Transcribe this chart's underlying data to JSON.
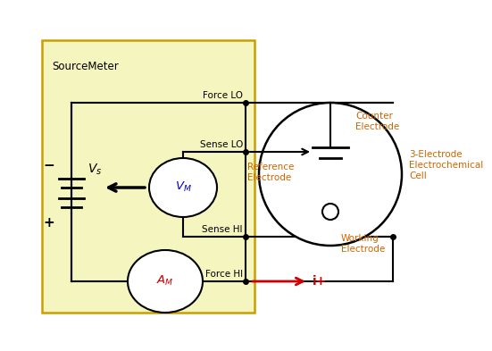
{
  "box_color": "#f5f5c0",
  "box_edge_color": "#c8a000",
  "line_color": "#000000",
  "blue_color": "#0000cc",
  "red_color": "#cc0000",
  "orange_color": "#cc6600",
  "label_force_lo": "Force LO",
  "label_sense_lo": "Sense LO",
  "label_sense_hi": "Sense HI",
  "label_force_hi": "Force HI",
  "label_ref_electrode": "Reference\nElectrode",
  "label_counter": "Counter\nElectrode",
  "label_working": "Working\nElectrode",
  "label_cell": "3-Electrode\nElectrochemical\nCell",
  "label_iplus": "i+",
  "sourcemeter_text": "SourceMeter"
}
